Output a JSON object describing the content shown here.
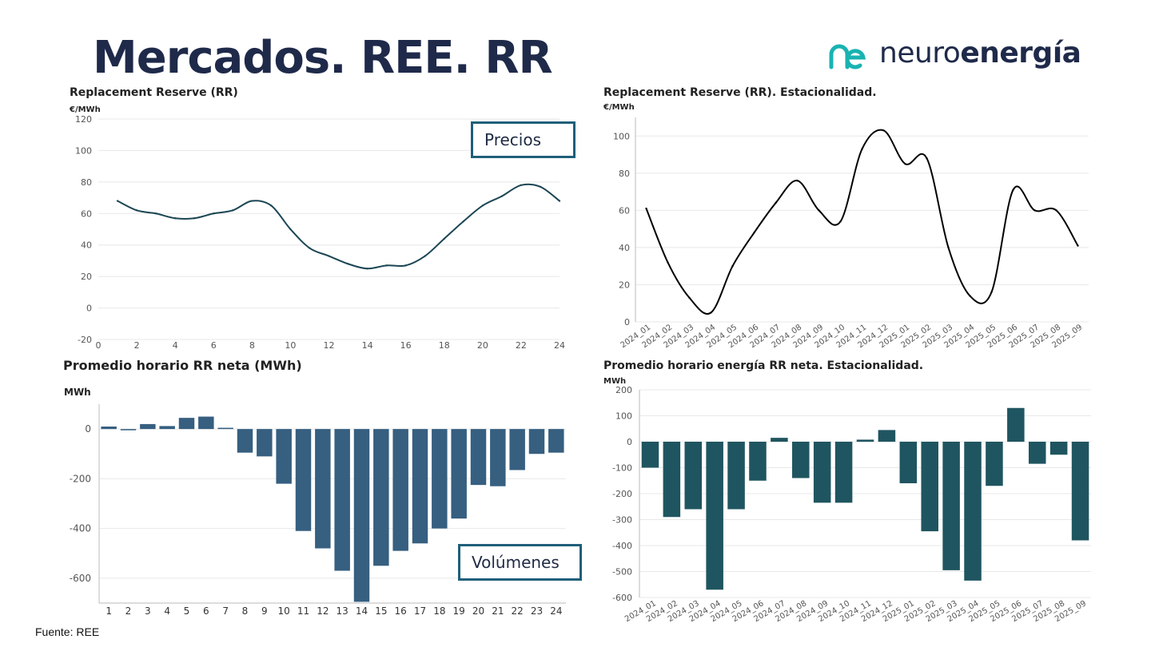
{
  "page": {
    "title": "Mercados. REE. RR",
    "logo": {
      "text_regular": "neuro",
      "text_bold": "energía"
    },
    "footer": "Fuente: REE"
  },
  "callouts": {
    "prices": "Precios",
    "volumes": "Volúmenes"
  },
  "colors": {
    "price_line": "#1b4654",
    "season_line": "#000000",
    "bars_hourly": "#365f80",
    "bars_season": "#1f5560",
    "grid": "#e8e8e8",
    "axis_text": "#555555",
    "logo_accent": "#19b3b1"
  },
  "chart_data": [
    {
      "id": "hourly-price",
      "type": "line",
      "title": "Replacement Reserve (RR)",
      "ylabel": "€/MWh",
      "ylim": [
        -20,
        120
      ],
      "yticks": [
        -20,
        0,
        20,
        40,
        60,
        80,
        100,
        120
      ],
      "xlim": [
        0,
        24
      ],
      "xticks": [
        0,
        2,
        4,
        6,
        8,
        10,
        12,
        14,
        16,
        18,
        20,
        22,
        24
      ],
      "x": [
        1,
        2,
        3,
        4,
        5,
        6,
        7,
        8,
        9,
        10,
        11,
        12,
        13,
        14,
        15,
        16,
        17,
        18,
        19,
        20,
        21,
        22,
        23,
        24
      ],
      "values": [
        68,
        62,
        60,
        57,
        57,
        60,
        62,
        68,
        65,
        50,
        38,
        33,
        28,
        25,
        27,
        27,
        33,
        44,
        55,
        65,
        71,
        78,
        77,
        68
      ]
    },
    {
      "id": "monthly-price",
      "type": "line",
      "title": "Replacement Reserve (RR). Estacionalidad.",
      "ylabel": "€/MWh",
      "ylim": [
        0,
        110
      ],
      "yticks": [
        0,
        20,
        40,
        60,
        80,
        100
      ],
      "categories": [
        "2024_01",
        "2024_02",
        "2024_03",
        "2024_04",
        "2024_05",
        "2024_06",
        "2024_07",
        "2024_08",
        "2024_09",
        "2024_10",
        "2024_11",
        "2024_12",
        "2025_01",
        "2025_02",
        "2025_03",
        "2025_04",
        "2025_05",
        "2025_06",
        "2025_07",
        "2025_08",
        "2025_09"
      ],
      "values": [
        61,
        32,
        13,
        5,
        30,
        48,
        64,
        76,
        60,
        54,
        93,
        103,
        85,
        88,
        40,
        14,
        16,
        71,
        60,
        60,
        41
      ]
    },
    {
      "id": "hourly-volume",
      "type": "bar",
      "title": "Promedio horario RR neta (MWh)",
      "ylabel": "MWh",
      "ylim": [
        -700,
        100
      ],
      "yticks": [
        0,
        -200,
        -400,
        -600
      ],
      "categories": [
        "1",
        "2",
        "3",
        "4",
        "5",
        "6",
        "7",
        "8",
        "9",
        "10",
        "11",
        "12",
        "13",
        "14",
        "15",
        "16",
        "17",
        "18",
        "19",
        "20",
        "21",
        "22",
        "23",
        "24"
      ],
      "values": [
        10,
        -5,
        20,
        12,
        45,
        50,
        5,
        -95,
        -110,
        -220,
        -410,
        -480,
        -570,
        -695,
        -550,
        -490,
        -460,
        -400,
        -360,
        -225,
        -230,
        -165,
        -100,
        -95
      ]
    },
    {
      "id": "monthly-volume",
      "type": "bar",
      "title": "Promedio horario energía RR neta. Estacionalidad.",
      "ylabel": "MWh",
      "ylim": [
        -600,
        200
      ],
      "yticks": [
        200,
        100,
        0,
        -100,
        -200,
        -300,
        -400,
        -500,
        -600
      ],
      "categories": [
        "2024_01",
        "2024_02",
        "2024_03",
        "2024_04",
        "2024_05",
        "2024_06",
        "2024_07",
        "2024_08",
        "2024_09",
        "2024_10",
        "2024_11",
        "2024_12",
        "2025_01",
        "2025_02",
        "2025_03",
        "2025_04",
        "2025_05",
        "2025_06",
        "2025_07",
        "2025_08",
        "2025_09"
      ],
      "values": [
        -100,
        -290,
        -260,
        -570,
        -260,
        -150,
        15,
        -140,
        -235,
        -235,
        8,
        45,
        -160,
        -345,
        -495,
        -535,
        -170,
        130,
        -85,
        -50,
        -380
      ]
    }
  ]
}
